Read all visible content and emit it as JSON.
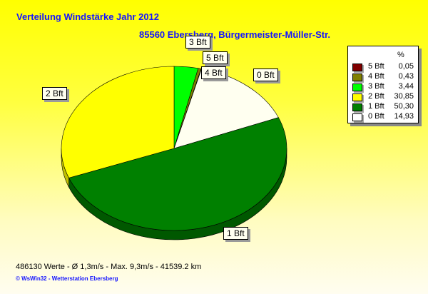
{
  "title": "Verteilung Windstärke  Jahr 2012",
  "subtitle": "85560 Ebersberg, Bürgermeister-Müller-Str.",
  "chart_data": {
    "type": "pie",
    "title": "Verteilung Windstärke  Jahr 2012",
    "unit": "%",
    "slices_clockwise_from_top": [
      {
        "label": "3 Bft",
        "value": 3.44,
        "color": "#00ff00",
        "side": "#00b000"
      },
      {
        "label": "4 Bft",
        "value": 0.43,
        "color": "#808000",
        "side": "#505000"
      },
      {
        "label": "5 Bft",
        "value": 0.05,
        "color": "#800000",
        "side": "#500000"
      },
      {
        "label": "0 Bft",
        "value": 14.93,
        "color": "#fffff0",
        "side": "#c8c8b8"
      },
      {
        "label": "1 Bft",
        "value": 50.3,
        "color": "#008000",
        "side": "#005800"
      },
      {
        "label": "2 Bft",
        "value": 30.85,
        "color": "#ffff00",
        "side": "#c0c000"
      }
    ],
    "legend": {
      "placement": "right",
      "header": "%",
      "entries": [
        {
          "label": "5 Bft",
          "value": "0,05",
          "color": "#800000"
        },
        {
          "label": "4 Bft",
          "value": "0,43",
          "color": "#808000"
        },
        {
          "label": "3 Bft",
          "value": "3,44",
          "color": "#00ff00"
        },
        {
          "label": "2 Bft",
          "value": "30,85",
          "color": "#ffff00"
        },
        {
          "label": "1 Bft",
          "value": "50,30",
          "color": "#008000"
        },
        {
          "label": "0 Bft",
          "value": "14,93",
          "color": "#ffffff"
        }
      ]
    }
  },
  "footer": {
    "stats": "486130 Werte   -   Ø 1,3m/s  -  Max. 9,3m/s   -   41539.2 km",
    "copyright": "© WsWin32   -   Wetterstation Ebersberg"
  }
}
